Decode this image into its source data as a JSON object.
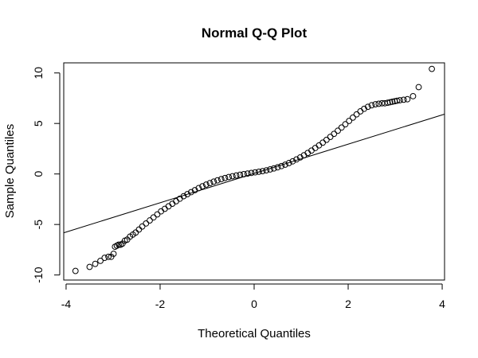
{
  "chart_data": {
    "type": "scatter",
    "title": "Normal Q-Q Plot",
    "xlabel": "Theoretical Quantiles",
    "ylabel": "Sample Quantiles",
    "xlim": [
      -4,
      4
    ],
    "ylim": [
      -10.5,
      11
    ],
    "xticks": [
      -4,
      -2,
      0,
      2,
      4
    ],
    "yticks": [
      -10,
      -5,
      0,
      5,
      10
    ],
    "xtick_labels": [
      "-4",
      "-2",
      "0",
      "2",
      "4"
    ],
    "ytick_labels": [
      "-10",
      "-5",
      "0",
      "5",
      "10"
    ],
    "grid": false,
    "legend": "none",
    "point_style": "open-circle",
    "reference_line": {
      "slope": 1.45,
      "intercept": 0.05
    },
    "series": [
      {
        "x": [
          -3.8,
          -3.5,
          -3.38,
          -3.27,
          -3.18,
          -3.1,
          -3.04,
          -2.99,
          -2.96,
          -2.92,
          -2.88,
          -2.84,
          -2.8,
          -2.75,
          -2.7,
          -2.64,
          -2.58,
          -2.52,
          -2.45,
          -2.38,
          -2.3,
          -2.22,
          -2.14,
          -2.06,
          -1.98,
          -1.9,
          -1.82,
          -1.74,
          -1.66,
          -1.58,
          -1.5,
          -1.42,
          -1.34,
          -1.26,
          -1.18,
          -1.1,
          -1.02,
          -0.94,
          -0.86,
          -0.78,
          -0.7,
          -0.62,
          -0.54,
          -0.46,
          -0.38,
          -0.3,
          -0.22,
          -0.14,
          -0.06,
          0.02,
          0.1,
          0.18,
          0.26,
          0.34,
          0.42,
          0.5,
          0.58,
          0.66,
          0.74,
          0.82,
          0.9,
          0.98,
          1.06,
          1.14,
          1.22,
          1.3,
          1.38,
          1.46,
          1.54,
          1.62,
          1.7,
          1.78,
          1.86,
          1.94,
          2.02,
          2.1,
          2.18,
          2.26,
          2.34,
          2.42,
          2.5,
          2.58,
          2.65,
          2.72,
          2.78,
          2.84,
          2.89,
          2.94,
          2.99,
          3.04,
          3.1,
          3.18,
          3.26,
          3.38,
          3.5,
          3.78
        ],
        "y": [
          -9.6,
          -9.2,
          -8.9,
          -8.6,
          -8.3,
          -8.2,
          -8.2,
          -7.9,
          -7.2,
          -7.1,
          -7.0,
          -7.0,
          -6.9,
          -6.6,
          -6.5,
          -6.2,
          -6.0,
          -5.8,
          -5.5,
          -5.2,
          -4.9,
          -4.6,
          -4.3,
          -4.0,
          -3.7,
          -3.45,
          -3.2,
          -2.95,
          -2.7,
          -2.45,
          -2.2,
          -2.0,
          -1.8,
          -1.6,
          -1.4,
          -1.22,
          -1.05,
          -0.9,
          -0.76,
          -0.63,
          -0.51,
          -0.4,
          -0.3,
          -0.22,
          -0.15,
          -0.08,
          -0.02,
          0.04,
          0.1,
          0.16,
          0.22,
          0.28,
          0.36,
          0.45,
          0.55,
          0.66,
          0.78,
          0.92,
          1.08,
          1.25,
          1.44,
          1.64,
          1.85,
          2.08,
          2.32,
          2.57,
          2.83,
          3.1,
          3.38,
          3.67,
          3.97,
          4.28,
          4.6,
          4.92,
          5.25,
          5.58,
          5.9,
          6.2,
          6.45,
          6.65,
          6.8,
          6.9,
          6.95,
          7.0,
          7.0,
          7.05,
          7.1,
          7.15,
          7.2,
          7.25,
          7.3,
          7.35,
          7.4,
          7.7,
          8.6,
          10.4
        ]
      }
    ]
  }
}
